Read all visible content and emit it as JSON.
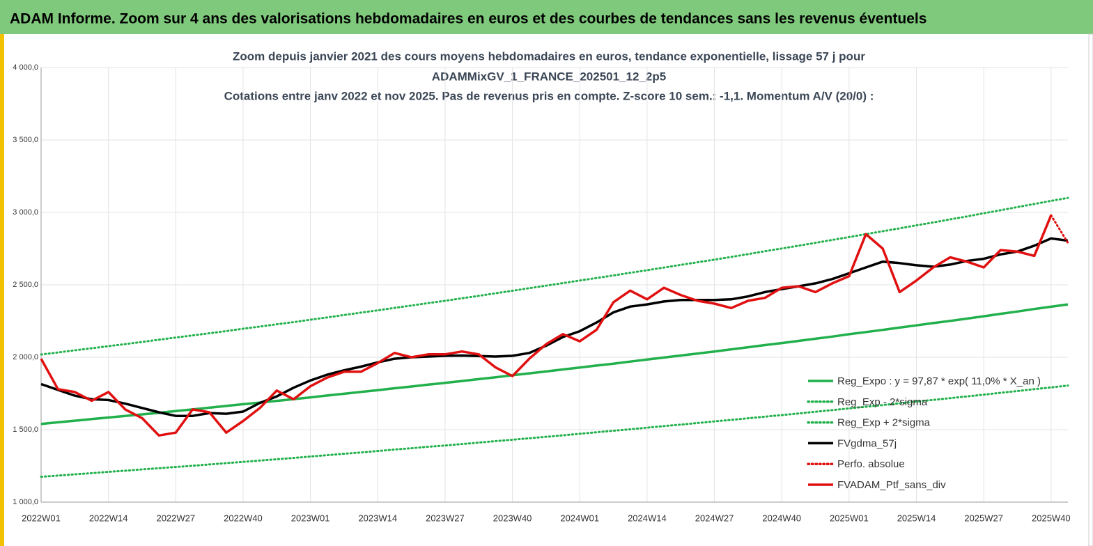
{
  "header": "ADAM Informe. Zoom sur 4 ans des valorisations hebdomadaires en euros et des courbes de tendances sans les revenus éventuels",
  "chart_data": {
    "type": "line",
    "title": [
      "Zoom depuis janvier 2021 des cours moyens hebdomadaires  en euros, tendance exponentielle, lissage 57 j pour",
      "ADAMMixGV_1_FRANCE_202501_12_2p5",
      "Cotations entre janv 2022 et nov 2025. Pas de revenus pris en compte. Z-score 10 sem.: -1,1. Momentum A/V (20/0) :"
    ],
    "categories": [
      "2022W01",
      null,
      null,
      null,
      "2022W14",
      null,
      null,
      null,
      "2022W27",
      null,
      null,
      null,
      "2022W40",
      null,
      null,
      null,
      "2023W01",
      null,
      null,
      null,
      "2023W14",
      null,
      null,
      null,
      "2023W27",
      null,
      null,
      null,
      "2023W40",
      null,
      null,
      null,
      "2024W01",
      null,
      null,
      null,
      "2024W14",
      null,
      null,
      null,
      "2024W27",
      null,
      null,
      null,
      "2024W40",
      null,
      null,
      null,
      "2025W01",
      null,
      null,
      null,
      "2025W14",
      null,
      null,
      null,
      "2025W27",
      null,
      null,
      null,
      "2025W40",
      null
    ],
    "ylim": [
      1000,
      4000
    ],
    "yticks": [
      {
        "value": 1000,
        "label": "1 000,0"
      },
      {
        "value": 1500,
        "label": "1 500,0"
      },
      {
        "value": 2000,
        "label": "2 000,0"
      },
      {
        "value": 2500,
        "label": "2 500,0"
      },
      {
        "value": 3000,
        "label": "3 000,0"
      },
      {
        "value": 3500,
        "label": "3 500,0"
      },
      {
        "value": 4000,
        "label": "4 000,0"
      }
    ],
    "grid": true,
    "legend": "lower right",
    "series": [
      {
        "name": "Reg_Expo : y = 97,87 * exp( 11,0% *  X_an )",
        "color": "#21b04b",
        "style": "solid",
        "values": [
          1540,
          1551,
          1562,
          1573,
          1584,
          1595,
          1606,
          1617,
          1629,
          1640,
          1652,
          1664,
          1676,
          1687,
          1699,
          1711,
          1723,
          1736,
          1748,
          1761,
          1773,
          1786,
          1798,
          1811,
          1823,
          1836,
          1849,
          1862,
          1876,
          1889,
          1902,
          1916,
          1929,
          1943,
          1956,
          1970,
          1984,
          1998,
          2012,
          2026,
          2040,
          2055,
          2069,
          2084,
          2098,
          2113,
          2128,
          2143,
          2159,
          2174,
          2189,
          2205,
          2220,
          2236,
          2251,
          2267,
          2283,
          2300,
          2316,
          2333,
          2349,
          2365
        ]
      },
      {
        "name": "Reg_Exp - 2*sigma",
        "color": "#21b04b",
        "style": "dotted",
        "values": [
          1175,
          1183,
          1192,
          1200,
          1209,
          1217,
          1226,
          1234,
          1243,
          1251,
          1260,
          1269,
          1278,
          1287,
          1296,
          1305,
          1315,
          1324,
          1334,
          1343,
          1353,
          1363,
          1372,
          1382,
          1391,
          1401,
          1411,
          1421,
          1431,
          1441,
          1451,
          1461,
          1472,
          1482,
          1493,
          1503,
          1514,
          1525,
          1535,
          1546,
          1557,
          1568,
          1579,
          1590,
          1601,
          1612,
          1624,
          1635,
          1647,
          1658,
          1670,
          1682,
          1694,
          1706,
          1718,
          1730,
          1742,
          1755,
          1767,
          1780,
          1792,
          1805
        ]
      },
      {
        "name": "Reg_Exp + 2*sigma",
        "color": "#21b04b",
        "style": "dotted",
        "values": [
          2019,
          2033,
          2048,
          2062,
          2077,
          2091,
          2106,
          2121,
          2136,
          2151,
          2166,
          2181,
          2197,
          2212,
          2228,
          2243,
          2259,
          2275,
          2292,
          2308,
          2324,
          2341,
          2357,
          2374,
          2390,
          2407,
          2424,
          2442,
          2459,
          2477,
          2494,
          2512,
          2530,
          2547,
          2565,
          2583,
          2601,
          2619,
          2638,
          2656,
          2674,
          2693,
          2712,
          2732,
          2751,
          2770,
          2790,
          2810,
          2830,
          2850,
          2870,
          2890,
          2911,
          2931,
          2952,
          2972,
          2994,
          3015,
          3037,
          3058,
          3080,
          3100
        ]
      },
      {
        "name": "FVgdma_57j",
        "color": "#000000",
        "style": "solid",
        "values": [
          1815,
          1775,
          1735,
          1710,
          1705,
          1680,
          1650,
          1620,
          1595,
          1595,
          1615,
          1610,
          1625,
          1685,
          1730,
          1790,
          1840,
          1880,
          1910,
          1935,
          1965,
          1990,
          2000,
          2005,
          2010,
          2012,
          2008,
          2005,
          2010,
          2030,
          2080,
          2140,
          2180,
          2240,
          2310,
          2350,
          2365,
          2385,
          2395,
          2395,
          2395,
          2400,
          2420,
          2450,
          2470,
          2490,
          2510,
          2540,
          2580,
          2620,
          2660,
          2650,
          2635,
          2625,
          2640,
          2665,
          2680,
          2710,
          2730,
          2770,
          2820,
          2805
        ]
      },
      {
        "name": "Perfo. absolue",
        "color": "#e01010",
        "style": "dotted",
        "values": [
          null,
          null,
          null,
          null,
          null,
          null,
          null,
          null,
          null,
          null,
          null,
          null,
          null,
          null,
          null,
          null,
          null,
          null,
          null,
          null,
          null,
          null,
          null,
          null,
          null,
          null,
          null,
          null,
          null,
          null,
          null,
          null,
          null,
          null,
          null,
          null,
          null,
          null,
          null,
          null,
          null,
          null,
          null,
          null,
          null,
          null,
          null,
          null,
          null,
          null,
          null,
          null,
          null,
          null,
          null,
          null,
          null,
          null,
          null,
          null,
          2980,
          2790
        ]
      },
      {
        "name": "FVADAM_Ptf_sans_div",
        "color": "#e01010",
        "style": "solid",
        "values": [
          1990,
          1780,
          1760,
          1700,
          1760,
          1640,
          1580,
          1460,
          1480,
          1640,
          1620,
          1480,
          1560,
          1650,
          1770,
          1710,
          1800,
          1860,
          1900,
          1900,
          1960,
          2030,
          2000,
          2020,
          2020,
          2040,
          2020,
          1930,
          1870,
          1990,
          2090,
          2160,
          2110,
          2190,
          2380,
          2460,
          2400,
          2480,
          2430,
          2390,
          2370,
          2340,
          2390,
          2410,
          2480,
          2490,
          2450,
          2510,
          2560,
          2850,
          2750,
          2450,
          2530,
          2620,
          2690,
          2660,
          2620,
          2740,
          2730,
          2700,
          2980,
          null
        ]
      }
    ]
  }
}
